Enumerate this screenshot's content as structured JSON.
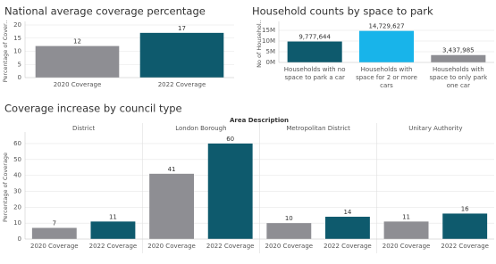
{
  "chart_data": [
    {
      "type": "bar",
      "title": "National average coverage percentage",
      "y_label": "Percentage of Cover..",
      "categories": [
        "2020 Coverage",
        "2022 Coverage"
      ],
      "values": [
        12,
        17
      ],
      "colors": [
        "#8e8e93",
        "#0e5a6d"
      ],
      "ylim": [
        0,
        20
      ],
      "yticks": [
        0,
        5,
        10,
        15,
        20
      ],
      "grid": true
    },
    {
      "type": "bar",
      "title": "Household counts by space to park",
      "y_label": "No of Househol..",
      "categories": [
        "Households with no space to park a car",
        "Households with space for 2 or more cars",
        "Households with space to only park one car"
      ],
      "values": [
        9777644,
        14729627,
        3437985
      ],
      "value_labels": [
        "9,777,644",
        "14,729,627",
        "3,437,985"
      ],
      "colors": [
        "#0e5a6d",
        "#18b4ea",
        "#8e8e93"
      ],
      "ylim": [
        0,
        17500000
      ],
      "yticks": [
        {
          "value": 0,
          "label": "0M"
        },
        {
          "value": 5000000,
          "label": "5M"
        },
        {
          "value": 10000000,
          "label": "10M"
        },
        {
          "value": 15000000,
          "label": "15M"
        }
      ],
      "grid": true
    },
    {
      "type": "panel-bar",
      "title": "Coverage increase by council type",
      "header": "Area Description",
      "y_label": "Percentage of Coverage",
      "categories": [
        "2020 Coverage",
        "2022 Coverage"
      ],
      "colors": [
        "#8e8e93",
        "#0e5a6d"
      ],
      "panels": [
        {
          "name": "District",
          "values": [
            7,
            11
          ]
        },
        {
          "name": "London Borough",
          "values": [
            41,
            60
          ]
        },
        {
          "name": "Metropolitan District",
          "values": [
            10,
            14
          ]
        },
        {
          "name": "Unitary Authority",
          "values": [
            11,
            16
          ]
        }
      ],
      "ylim": [
        0,
        65
      ],
      "yticks": [
        0,
        10,
        20,
        30,
        40,
        50,
        60
      ],
      "grid": true
    }
  ]
}
